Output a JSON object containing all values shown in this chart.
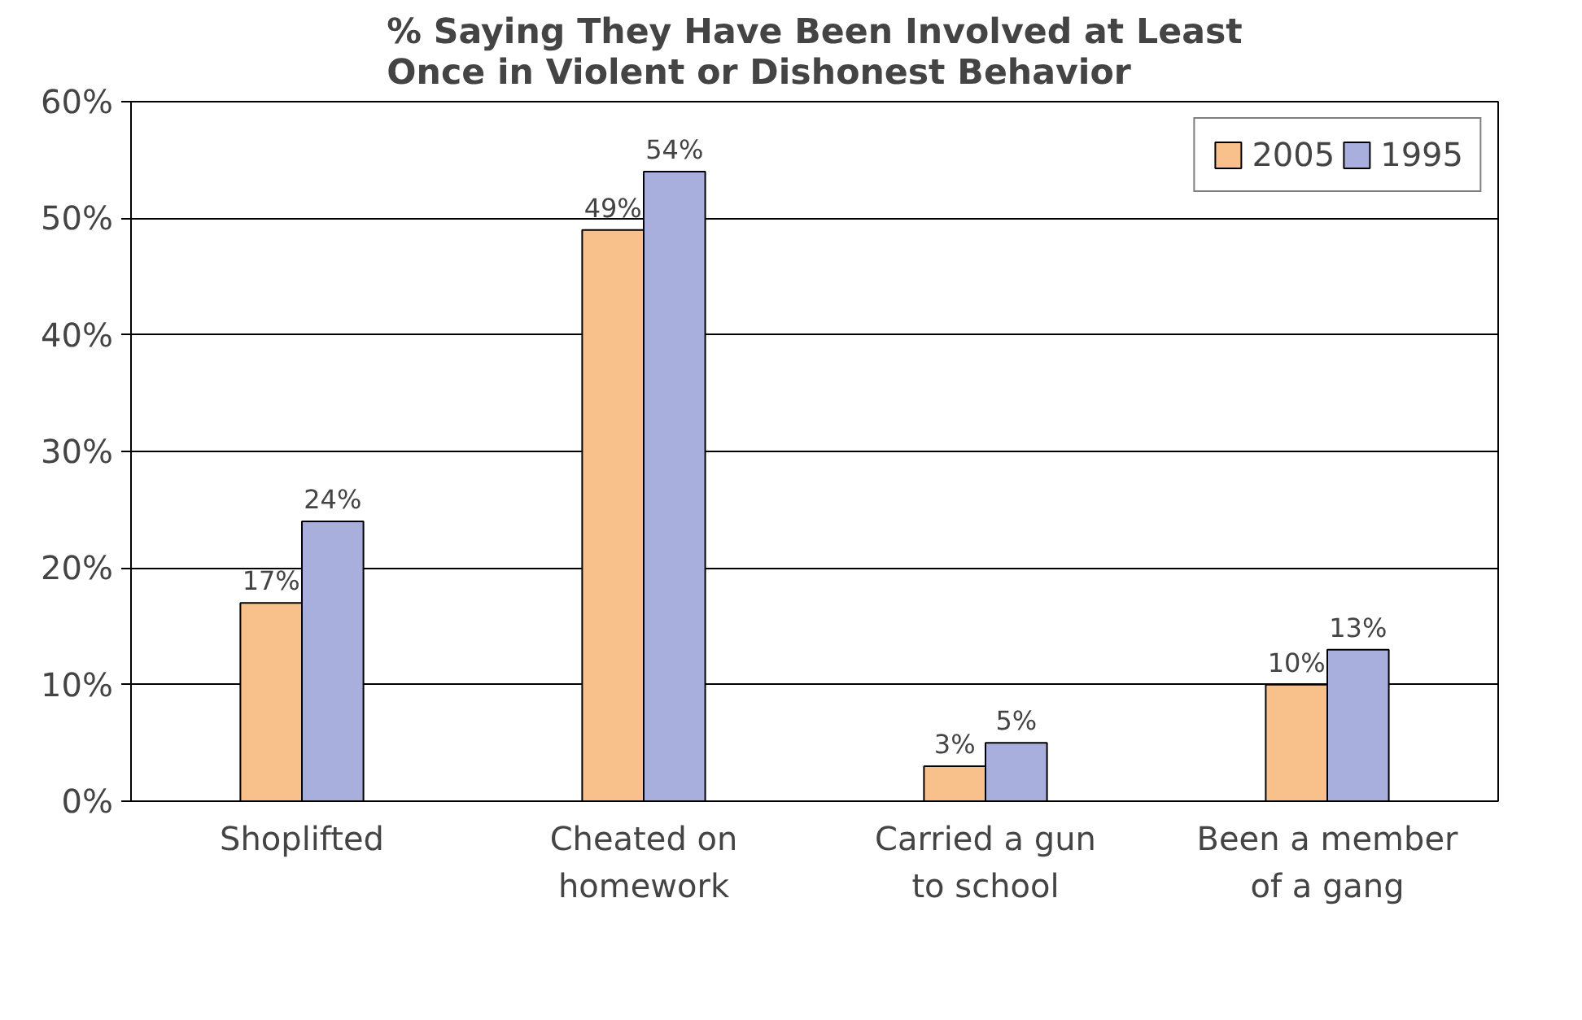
{
  "chart_data": {
    "type": "bar",
    "title": "% Saying They Have Been Involved at Least Once in Violent or Dishonest Behavior",
    "categories": [
      "Shoplifted",
      "Cheated on homework",
      "Carried a gun to school",
      "Been a member of a gang"
    ],
    "series": [
      {
        "name": "2005",
        "color": "#f8c08a",
        "values": [
          17,
          49,
          3,
          10
        ],
        "value_labels": [
          "17%",
          "49%",
          "3%",
          "10%"
        ]
      },
      {
        "name": "1995",
        "color": "#a8afdc",
        "values": [
          24,
          54,
          5,
          13
        ],
        "value_labels": [
          "24%",
          "54%",
          "5%",
          "13%"
        ]
      }
    ],
    "ylim": [
      0,
      60
    ],
    "yticks": [
      {
        "value": 0,
        "label": "0%"
      },
      {
        "value": 10,
        "label": "10%"
      },
      {
        "value": 20,
        "label": "20%"
      },
      {
        "value": 30,
        "label": "30%"
      },
      {
        "value": 40,
        "label": "40%"
      },
      {
        "value": 50,
        "label": "50%"
      },
      {
        "value": 60,
        "label": "60%"
      }
    ],
    "grid": "y",
    "legend": "top right"
  }
}
